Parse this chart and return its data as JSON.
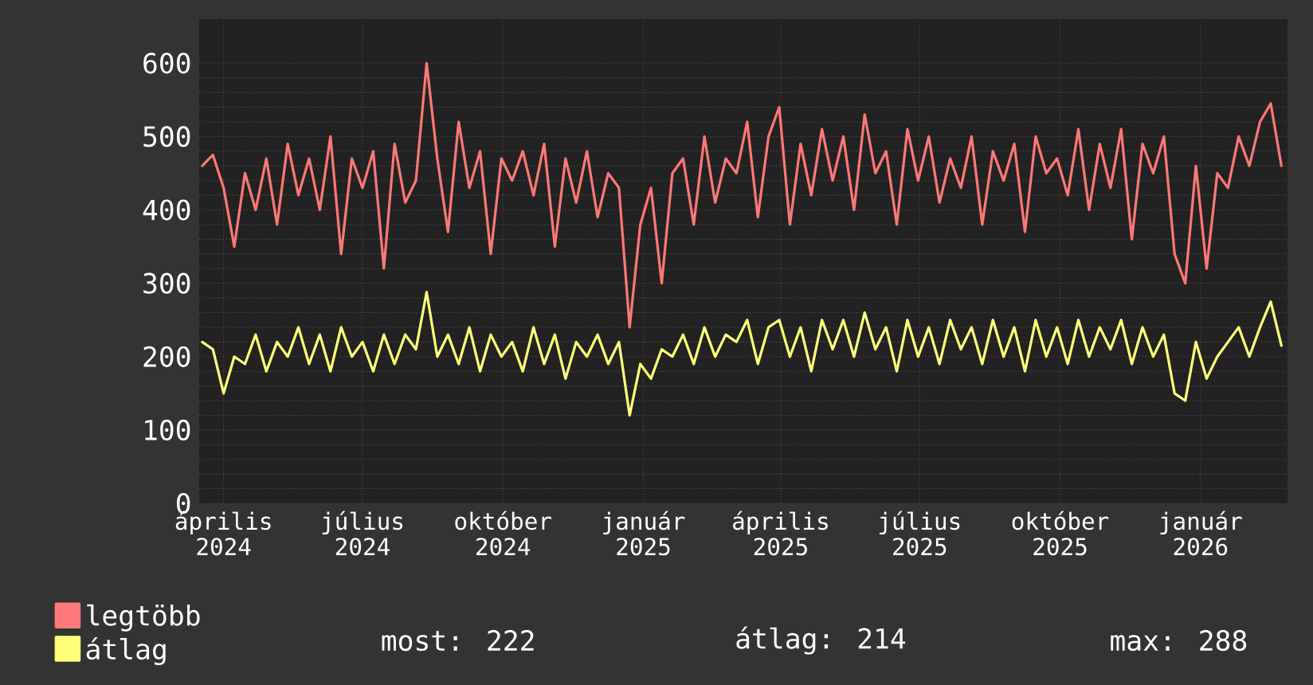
{
  "chart_data": {
    "type": "line",
    "xlim": [
      "2024-03-16",
      "2026-02-27"
    ],
    "ylim": [
      0,
      660
    ],
    "yticks": [
      0,
      100,
      200,
      300,
      400,
      500,
      600
    ],
    "xticks": [
      {
        "value": "2024-04-01",
        "label": "április 2024"
      },
      {
        "value": "2024-07-01",
        "label": "július 2024"
      },
      {
        "value": "2024-10-01",
        "label": "október 2024"
      },
      {
        "value": "2025-01-01",
        "label": "január 2025"
      },
      {
        "value": "2025-04-01",
        "label": "április 2025"
      },
      {
        "value": "2025-07-01",
        "label": "július 2025"
      },
      {
        "value": "2025-10-01",
        "label": "október 2025"
      },
      {
        "value": "2026-01-01",
        "label": "január 2026"
      }
    ],
    "grid": true,
    "legend": "bottom",
    "annotations": [
      "most: 222",
      "átlag: 214",
      "max: 288"
    ],
    "series": [
      {
        "name": "legtöbb",
        "color": "#ff7878",
        "values": [
          460,
          475,
          430,
          350,
          450,
          400,
          470,
          380,
          490,
          420,
          470,
          400,
          500,
          340,
          470,
          430,
          480,
          320,
          490,
          410,
          440,
          600,
          470,
          370,
          520,
          430,
          480,
          340,
          470,
          440,
          480,
          420,
          490,
          350,
          470,
          410,
          480,
          390,
          450,
          430,
          240,
          380,
          430,
          300,
          450,
          470,
          380,
          500,
          410,
          470,
          450,
          520,
          390,
          500,
          540,
          380,
          490,
          420,
          510,
          440,
          500,
          400,
          530,
          450,
          480,
          380,
          510,
          440,
          500,
          410,
          470,
          430,
          500,
          380,
          480,
          440,
          490,
          370,
          500,
          450,
          470,
          420,
          510,
          400,
          490,
          430,
          510,
          360,
          490,
          450,
          500,
          340,
          300,
          460,
          320,
          450,
          430,
          500,
          460,
          520,
          545,
          460
        ]
      },
      {
        "name": "átlag",
        "color": "#ffff78",
        "values": [
          220,
          210,
          150,
          200,
          190,
          230,
          180,
          220,
          200,
          240,
          190,
          230,
          180,
          240,
          200,
          220,
          180,
          230,
          190,
          230,
          210,
          288,
          200,
          230,
          190,
          240,
          180,
          230,
          200,
          220,
          180,
          240,
          190,
          230,
          170,
          220,
          200,
          230,
          190,
          220,
          120,
          190,
          170,
          210,
          200,
          230,
          190,
          240,
          200,
          230,
          220,
          250,
          190,
          240,
          250,
          200,
          240,
          180,
          250,
          210,
          250,
          200,
          260,
          210,
          240,
          180,
          250,
          200,
          240,
          190,
          250,
          210,
          240,
          190,
          250,
          200,
          240,
          180,
          250,
          200,
          240,
          190,
          250,
          200,
          240,
          210,
          250,
          190,
          240,
          200,
          230,
          150,
          140,
          220,
          170,
          200,
          220,
          240,
          200,
          240,
          275,
          215
        ]
      }
    ],
    "x": [
      "2024-03-18",
      "2024-03-25",
      "2024-04-01",
      "2024-04-08",
      "2024-04-15",
      "2024-04-22",
      "2024-04-29",
      "2024-05-06",
      "2024-05-13",
      "2024-05-20",
      "2024-05-27",
      "2024-06-03",
      "2024-06-10",
      "2024-06-17",
      "2024-06-24",
      "2024-07-01",
      "2024-07-08",
      "2024-07-15",
      "2024-07-22",
      "2024-07-29",
      "2024-08-05",
      "2024-08-12",
      "2024-08-19",
      "2024-08-26",
      "2024-09-02",
      "2024-09-09",
      "2024-09-16",
      "2024-09-23",
      "2024-09-30",
      "2024-10-07",
      "2024-10-14",
      "2024-10-21",
      "2024-10-28",
      "2024-11-04",
      "2024-11-11",
      "2024-11-18",
      "2024-11-25",
      "2024-12-02",
      "2024-12-09",
      "2024-12-16",
      "2024-12-23",
      "2024-12-30",
      "2025-01-06",
      "2025-01-13",
      "2025-01-20",
      "2025-01-27",
      "2025-02-03",
      "2025-02-10",
      "2025-02-17",
      "2025-02-24",
      "2025-03-03",
      "2025-03-10",
      "2025-03-17",
      "2025-03-24",
      "2025-03-31",
      "2025-04-07",
      "2025-04-14",
      "2025-04-21",
      "2025-04-28",
      "2025-05-05",
      "2025-05-12",
      "2025-05-19",
      "2025-05-26",
      "2025-06-02",
      "2025-06-09",
      "2025-06-16",
      "2025-06-23",
      "2025-06-30",
      "2025-07-07",
      "2025-07-14",
      "2025-07-21",
      "2025-07-28",
      "2025-08-04",
      "2025-08-11",
      "2025-08-18",
      "2025-08-25",
      "2025-09-01",
      "2025-09-08",
      "2025-09-15",
      "2025-09-22",
      "2025-09-29",
      "2025-10-06",
      "2025-10-13",
      "2025-10-20",
      "2025-10-27",
      "2025-11-03",
      "2025-11-10",
      "2025-11-17",
      "2025-11-24",
      "2025-12-01",
      "2025-12-08",
      "2025-12-15",
      "2025-12-22",
      "2025-12-29",
      "2026-01-05",
      "2026-01-12",
      "2026-01-19",
      "2026-01-26",
      "2026-02-02",
      "2026-02-09",
      "2026-02-16",
      "2026-02-23"
    ]
  }
}
